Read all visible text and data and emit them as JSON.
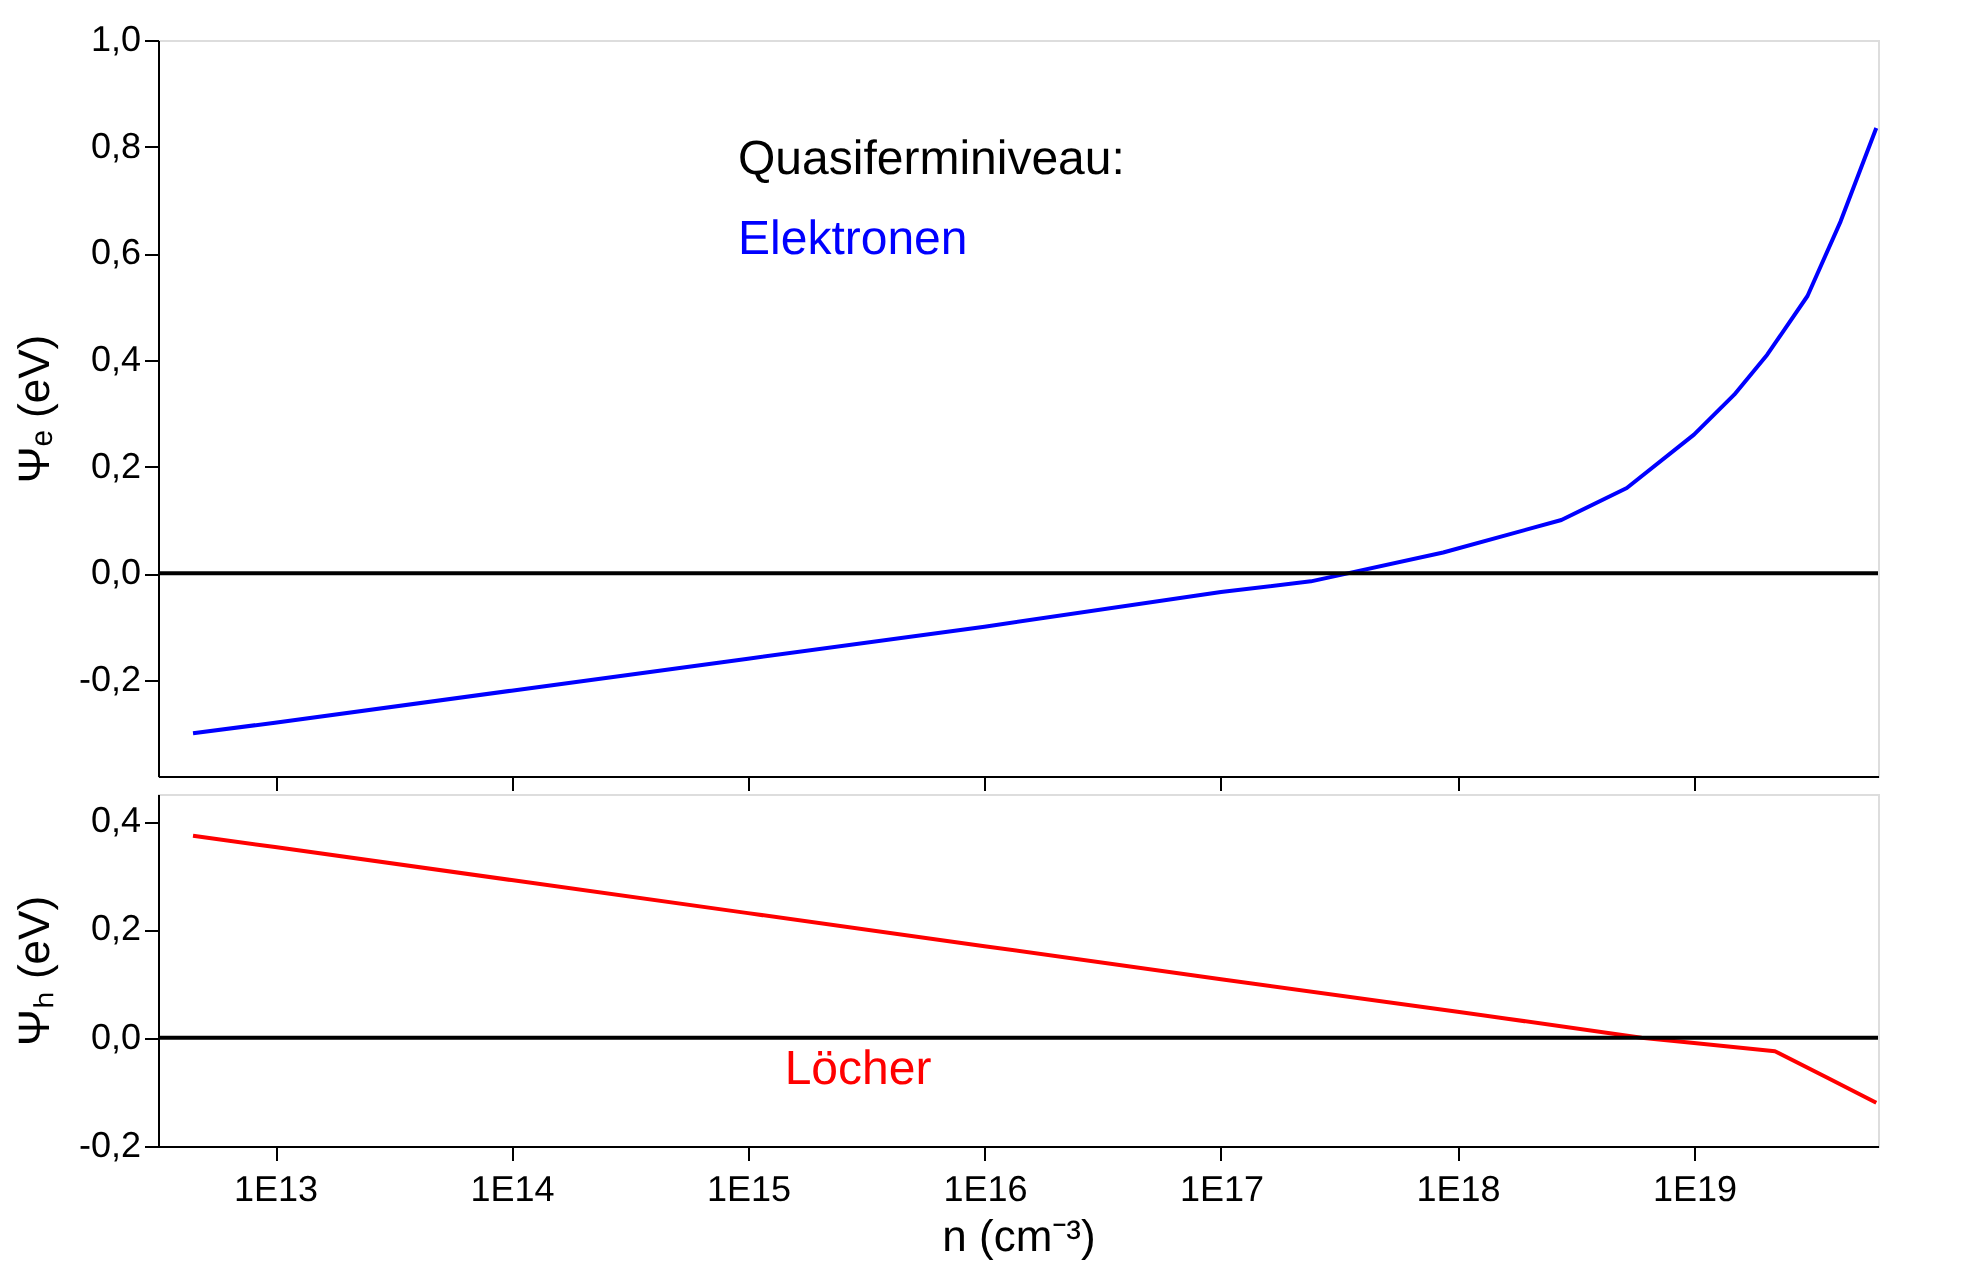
{
  "chart_data": [
    {
      "type": "line",
      "ylabel": "Ψₑ (eV)",
      "annotations": [
        "Quasiferminiveau:"
      ],
      "log": "x",
      "grid": false,
      "marker": "none",
      "line_style": "solid",
      "tick_labels": "y",
      "xlim": [
        3200000000000.0,
        6e+19
      ],
      "ylim": [
        -0.38,
        1.0
      ],
      "xticks": [
        {
          "value": 10000000000000.0,
          "label": null
        },
        {
          "value": 100000000000000.0,
          "label": null
        },
        {
          "value": 1000000000000000.0,
          "label": null
        },
        {
          "value": 1e+16,
          "label": null
        },
        {
          "value": 1e+17,
          "label": null
        },
        {
          "value": 1e+18,
          "label": null
        },
        {
          "value": 1e+19,
          "label": null
        }
      ],
      "yticks": [
        {
          "value": -0.2,
          "label": "-0,2"
        },
        {
          "value": 0.0,
          "label": "0,0"
        },
        {
          "value": 0.2,
          "label": "0,2"
        },
        {
          "value": 0.4,
          "label": "0,4"
        },
        {
          "value": 0.6,
          "label": "0,6"
        },
        {
          "value": 0.8,
          "label": "0,8"
        },
        {
          "value": 1.0,
          "label": "1,0"
        }
      ],
      "ref_lines": [
        {
          "axis": "y",
          "value": 0,
          "color": "#000000"
        }
      ],
      "series": [
        {
          "name": "Elektronen",
          "color": "#0000ff",
          "x": [
            4500000000000.0,
            10000000000000.0,
            100000000000000.0,
            1000000000000000.0,
            1e+16,
            1e+17,
            2.4e+17,
            8.7e+17,
            2.75e+18,
            5.2e+18,
            1e+19,
            1.48e+19,
            2.04e+19,
            3.02e+19,
            4.17e+19,
            5.9e+19
          ],
          "values": [
            -0.3,
            -0.28,
            -0.22,
            -0.16,
            -0.1,
            -0.035,
            -0.015,
            0.039,
            0.1,
            0.16,
            0.26,
            0.335,
            0.41,
            0.52,
            0.66,
            0.835
          ]
        }
      ]
    },
    {
      "type": "line",
      "xlabel": "n (cm⁻³)",
      "ylabel": "Ψₕ (eV)",
      "log": "x",
      "grid": false,
      "marker": "none",
      "line_style": "solid",
      "xlim": [
        3200000000000.0,
        6e+19
      ],
      "ylim": [
        -0.2,
        0.45
      ],
      "xticks": [
        {
          "value": 10000000000000.0,
          "label": "1E13"
        },
        {
          "value": 100000000000000.0,
          "label": "1E14"
        },
        {
          "value": 1000000000000000.0,
          "label": "1E15"
        },
        {
          "value": 1e+16,
          "label": "1E16"
        },
        {
          "value": 1e+17,
          "label": "1E17"
        },
        {
          "value": 1e+18,
          "label": "1E18"
        },
        {
          "value": 1e+19,
          "label": "1E19"
        }
      ],
      "yticks": [
        {
          "value": -0.2,
          "label": "-0,2"
        },
        {
          "value": 0.0,
          "label": "0,0"
        },
        {
          "value": 0.2,
          "label": "0,2"
        },
        {
          "value": 0.4,
          "label": "0,4"
        }
      ],
      "ref_lines": [
        {
          "axis": "y",
          "value": 0,
          "color": "#000000"
        }
      ],
      "series": [
        {
          "name": "Löcher",
          "color": "#ff0000",
          "x": [
            4500000000000.0,
            10000000000000.0,
            100000000000000.0,
            1000000000000000.0,
            1e+16,
            1e+17,
            1e+18,
            6e+18,
            1e+19,
            2.2e+19,
            3.7e+19,
            5.9e+19
          ],
          "values": [
            0.373,
            0.352,
            0.291,
            0.23,
            0.169,
            0.108,
            0.048,
            0.0,
            -0.01,
            -0.025,
            -0.075,
            -0.12
          ]
        }
      ]
    }
  ]
}
